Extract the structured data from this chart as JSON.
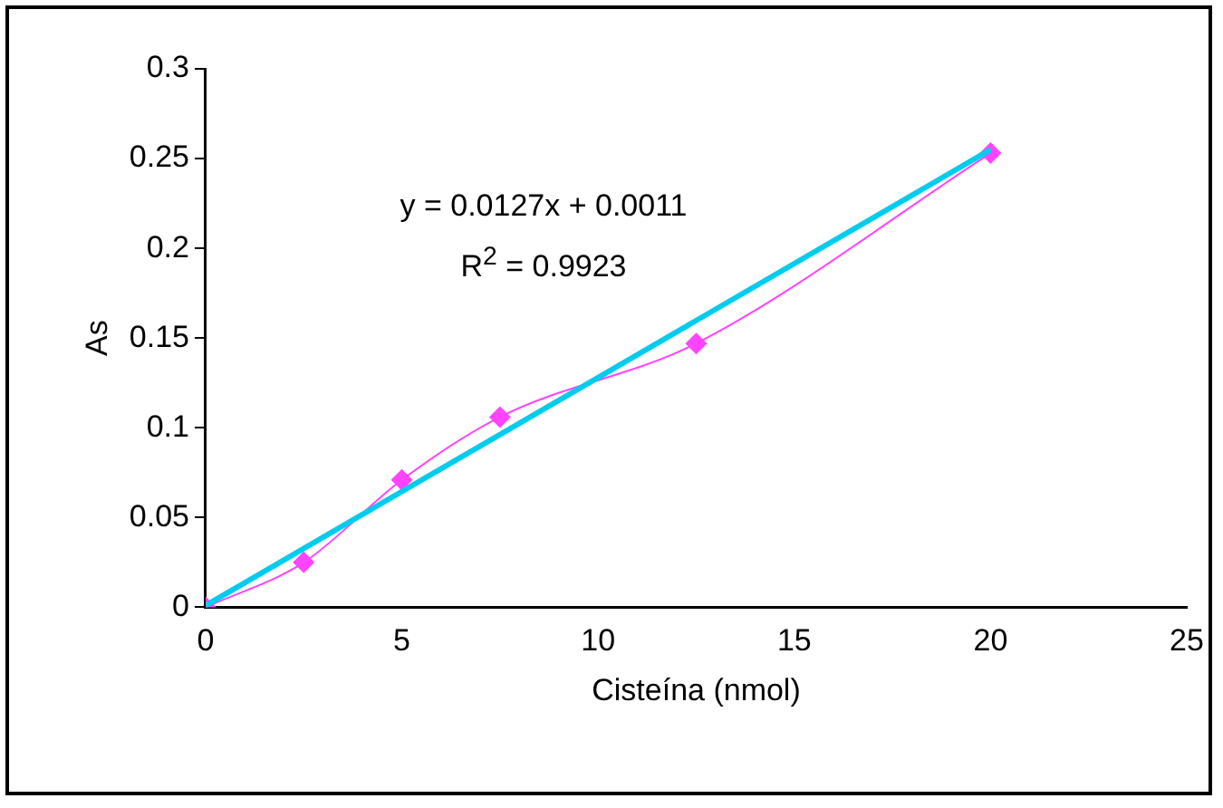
{
  "chart_data": {
    "type": "line",
    "xlabel": "Cisteína (nmol)",
    "ylabel": "As",
    "xlim": [
      0,
      25
    ],
    "xticks": [
      0,
      5,
      10,
      15,
      20,
      25
    ],
    "ylim": [
      0,
      0.3
    ],
    "yticks": [
      0,
      0.05,
      0.1,
      0.15,
      0.2,
      0.25,
      0.3
    ],
    "grid": false,
    "legend": false,
    "series": [
      {
        "color": "#ff44ff",
        "marker": "diamond",
        "x": [
          0,
          2.5,
          5,
          7.5,
          12.5,
          20
        ],
        "values": [
          0,
          0.025,
          0.071,
          0.106,
          0.147,
          0.253
        ]
      },
      {
        "type": "line",
        "color": "#00ccee",
        "marker": "none",
        "x": [
          0,
          20
        ],
        "values": [
          0.001,
          0.255
        ]
      }
    ],
    "annotations": [
      "y = 0.0127x + 0.0011",
      "R$^{2}$ = 0.9923"
    ]
  }
}
